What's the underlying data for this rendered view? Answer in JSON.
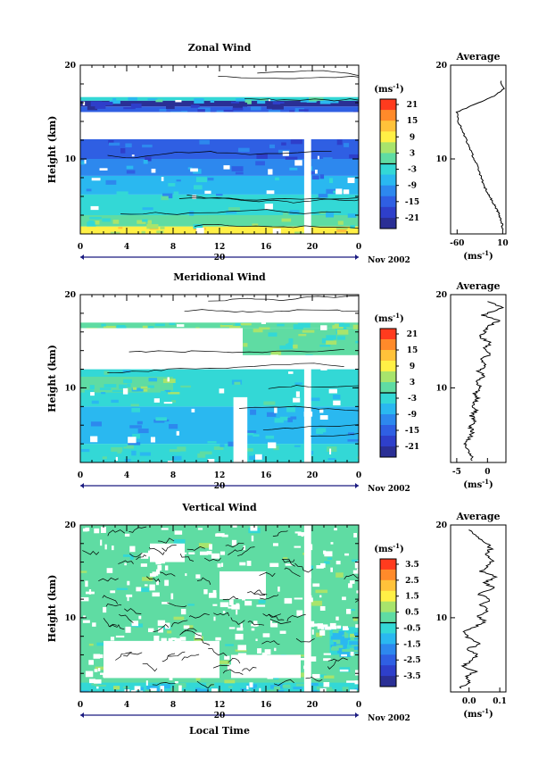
{
  "chart_data": [
    {
      "type": "heatmap",
      "title": "Zonal Wind",
      "ylabel": "Height (km)",
      "ylim": [
        2,
        20
      ],
      "y_ticks": [
        "20",
        "10"
      ],
      "x_ticks": [
        "0",
        "4",
        "8",
        "12",
        "16",
        "20",
        "0"
      ],
      "date_label": "20",
      "date_suffix": "Nov 2002",
      "colorbar": {
        "unit_label": "(ms",
        "unit_sup": "-1",
        "unit_close": ")",
        "ticks": [
          "21",
          "15",
          "9",
          "3",
          "-3",
          "-9",
          "-15",
          "-21"
        ],
        "colors": [
          "#ff3b1e",
          "#ff8a2a",
          "#ffc23a",
          "#fff046",
          "#a8e46c",
          "#5fdca3",
          "#33d8d6",
          "#2ab8f0",
          "#2d88ee",
          "#2f5fe3",
          "#2e3fca",
          "#2a2f95"
        ]
      },
      "layers": [
        {
          "x0": 0.0,
          "x1": 24.0,
          "y0": 2.0,
          "y1": 2.8,
          "color": "#fff046"
        },
        {
          "x0": 0.0,
          "x1": 24.0,
          "y0": 2.8,
          "y1": 4.0,
          "color": "#5fdca3"
        },
        {
          "x0": 0.0,
          "x1": 24.0,
          "y0": 4.0,
          "y1": 6.2,
          "color": "#33d8d6"
        },
        {
          "x0": 0.0,
          "x1": 24.0,
          "y0": 6.2,
          "y1": 8.2,
          "color": "#2ab8f0"
        },
        {
          "x0": 0.0,
          "x1": 24.0,
          "y0": 8.2,
          "y1": 10.0,
          "color": "#2d88ee"
        },
        {
          "x0": 0.0,
          "x1": 24.0,
          "y0": 10.0,
          "y1": 12.1,
          "color": "#2f5fe3"
        },
        {
          "x0": 0.0,
          "x1": 24.0,
          "y0": 15.0,
          "y1": 15.6,
          "color": "#2f5fe3"
        },
        {
          "x0": 0.0,
          "x1": 24.0,
          "y0": 16.2,
          "y1": 16.6,
          "color": "#33d8d6"
        },
        {
          "x0": 0.0,
          "x1": 24.0,
          "y0": 15.6,
          "y1": 16.2,
          "color": "#2a2f95"
        }
      ],
      "gaps": [
        {
          "x0": 19.3,
          "x1": 19.9,
          "y0": 2.0,
          "y1": 12.1
        },
        {
          "x0": 0.0,
          "x1": 24.0,
          "y0": 12.1,
          "y1": 15.0
        }
      ],
      "profile": {
        "title": "Average",
        "xlabel": "(ms",
        "xlabel_sup": "-1",
        "xlabel_close": ")",
        "x_ticks": [
          "-60",
          "10"
        ],
        "y_ticks": [
          "20",
          "10"
        ],
        "x": [
          10,
          9,
          7,
          5,
          2,
          -2,
          -6,
          -10,
          -14,
          -18,
          -22,
          -26,
          -30,
          -35,
          -40,
          -46,
          -52,
          -58,
          -60,
          -40,
          -20,
          0,
          12,
          6
        ],
        "y": [
          2.5,
          3.0,
          3.5,
          4.0,
          4.5,
          5.0,
          5.5,
          6.0,
          6.5,
          7.0,
          7.8,
          8.6,
          9.4,
          10.2,
          11.0,
          12.0,
          13.0,
          14.0,
          15.0,
          15.6,
          16.2,
          16.8,
          17.5,
          18.5
        ]
      }
    },
    {
      "type": "heatmap",
      "title": "Meridional Wind",
      "ylabel": "Height (km)",
      "ylim": [
        2,
        20
      ],
      "y_ticks": [
        "20",
        "10"
      ],
      "x_ticks": [
        "0",
        "4",
        "8",
        "12",
        "16",
        "20",
        "0"
      ],
      "date_label": "20",
      "date_suffix": "Nov 2002",
      "colorbar": {
        "unit_label": "(ms",
        "unit_sup": "-1",
        "unit_close": ")",
        "ticks": [
          "21",
          "15",
          "9",
          "3",
          "-3",
          "-9",
          "-15",
          "-21"
        ],
        "colors": [
          "#ff3b1e",
          "#ff8a2a",
          "#ffc23a",
          "#fff046",
          "#a8e46c",
          "#5fdca3",
          "#33d8d6",
          "#2ab8f0",
          "#2d88ee",
          "#2f5fe3",
          "#2e3fca",
          "#2a2f95"
        ]
      },
      "layers": [
        {
          "x0": 0.0,
          "x1": 24.0,
          "y0": 2.0,
          "y1": 4.0,
          "color": "#33d8d6"
        },
        {
          "x0": 0.0,
          "x1": 24.0,
          "y0": 4.0,
          "y1": 8.0,
          "color": "#2ab8f0"
        },
        {
          "x0": 0.0,
          "x1": 24.0,
          "y0": 8.0,
          "y1": 12.0,
          "color": "#33d8d6"
        },
        {
          "x0": 0.0,
          "x1": 8.0,
          "y0": 9.5,
          "y1": 11.2,
          "color": "#5fdca3"
        },
        {
          "x0": 0.0,
          "x1": 24.0,
          "y0": 16.4,
          "y1": 17.0,
          "color": "#5fdca3"
        },
        {
          "x0": 14.0,
          "x1": 24.0,
          "y0": 13.5,
          "y1": 16.4,
          "color": "#5fdca3"
        }
      ],
      "gaps": [
        {
          "x0": 13.2,
          "x1": 14.4,
          "y0": 2.0,
          "y1": 9.0
        },
        {
          "x0": 19.3,
          "x1": 19.9,
          "y0": 2.0,
          "y1": 12.0
        },
        {
          "x0": 0.0,
          "x1": 14.0,
          "y0": 12.0,
          "y1": 16.4
        },
        {
          "x0": 14.0,
          "x1": 24.0,
          "y0": 12.0,
          "y1": 13.5
        }
      ],
      "profile": {
        "title": "Average",
        "xlabel": "(ms",
        "xlabel_sup": "-1",
        "xlabel_close": ")",
        "x_ticks": [
          "-5",
          "0"
        ],
        "y_ticks": [
          "20",
          "10"
        ],
        "x": [
          -2.5,
          -2.8,
          -3.2,
          -3.8,
          -3.0,
          -2.4,
          -2.8,
          -2.0,
          -2.6,
          -1.8,
          -2.4,
          -1.6,
          -2.2,
          -1.0,
          -1.8,
          -0.6,
          -1.4,
          -0.2,
          -1.0,
          0.4,
          -0.8,
          0.6,
          -1.2,
          -0.4,
          0.2,
          1.8,
          -0.8,
          2.2,
          0.0
        ],
        "y": [
          2.2,
          2.8,
          3.4,
          4.0,
          4.6,
          5.2,
          5.8,
          6.4,
          7.0,
          7.6,
          8.2,
          8.8,
          9.4,
          10.0,
          10.6,
          11.2,
          11.8,
          12.4,
          13.0,
          13.6,
          14.2,
          14.8,
          15.4,
          16.0,
          16.6,
          17.2,
          17.8,
          18.6,
          19.4
        ]
      }
    },
    {
      "type": "heatmap",
      "title": "Vertical Wind",
      "ylabel": "Height (km)",
      "xlabel": "Local Time",
      "ylim": [
        2,
        20
      ],
      "y_ticks": [
        "20",
        "10"
      ],
      "x_ticks": [
        "0",
        "4",
        "8",
        "12",
        "16",
        "20",
        "0"
      ],
      "date_label": "20",
      "date_suffix": "Nov 2002",
      "colorbar": {
        "unit_label": "(ms",
        "unit_sup": "-1",
        "unit_close": ")",
        "ticks": [
          "3.5",
          "2.5",
          "1.5",
          "0.5",
          "-0.5",
          "-1.5",
          "-2.5",
          "-3.5"
        ],
        "colors": [
          "#ff3b1e",
          "#ff8a2a",
          "#ffc23a",
          "#fff046",
          "#a8e46c",
          "#5fdca3",
          "#33d8d6",
          "#2ab8f0",
          "#2d88ee",
          "#2f5fe3",
          "#2e3fca",
          "#2a2f95"
        ]
      },
      "layers": [
        {
          "x0": 0.0,
          "x1": 24.0,
          "y0": 2.0,
          "y1": 20.0,
          "color": "#5fdca3"
        },
        {
          "x0": 0.0,
          "x1": 24.0,
          "y0": 2.0,
          "y1": 3.0,
          "color": "#33d8d6"
        },
        {
          "x0": 21.5,
          "x1": 24.0,
          "y0": 6.0,
          "y1": 9.0,
          "color": "#33d8d6"
        }
      ],
      "gaps": [
        {
          "x0": 2.0,
          "x1": 12.0,
          "y0": 3.5,
          "y1": 7.5
        },
        {
          "x0": 13.0,
          "x1": 19.0,
          "y0": 3.5,
          "y1": 6.0
        },
        {
          "x0": 12.0,
          "x1": 16.0,
          "y0": 12.0,
          "y1": 15.0
        },
        {
          "x0": 6.0,
          "x1": 9.0,
          "y0": 16.0,
          "y1": 18.0
        },
        {
          "x0": 19.3,
          "x1": 19.9,
          "y0": 2.0,
          "y1": 20.0
        }
      ],
      "profile": {
        "title": "Average",
        "xlabel": "(ms",
        "xlabel_sup": "-1",
        "xlabel_close": ")",
        "x_ticks": [
          "0.0",
          "0.1"
        ],
        "y_ticks": [
          "20",
          "10"
        ],
        "x": [
          -0.03,
          0.0,
          -0.01,
          0.02,
          -0.02,
          0.01,
          0.03,
          -0.01,
          0.04,
          0.0,
          -0.02,
          0.02,
          0.05,
          0.03,
          0.06,
          0.04,
          0.07,
          0.03,
          0.08,
          0.05,
          0.09,
          0.04,
          0.06,
          0.08,
          0.05,
          0.07,
          0.06,
          0.02,
          0.0
        ],
        "y": [
          2.4,
          3.0,
          3.6,
          4.2,
          4.8,
          5.4,
          6.0,
          6.6,
          7.2,
          7.8,
          8.4,
          9.0,
          9.6,
          10.2,
          10.8,
          11.4,
          12.0,
          12.6,
          13.2,
          13.8,
          14.4,
          15.0,
          15.6,
          16.2,
          16.8,
          17.4,
          18.0,
          18.8,
          19.6
        ]
      }
    }
  ]
}
